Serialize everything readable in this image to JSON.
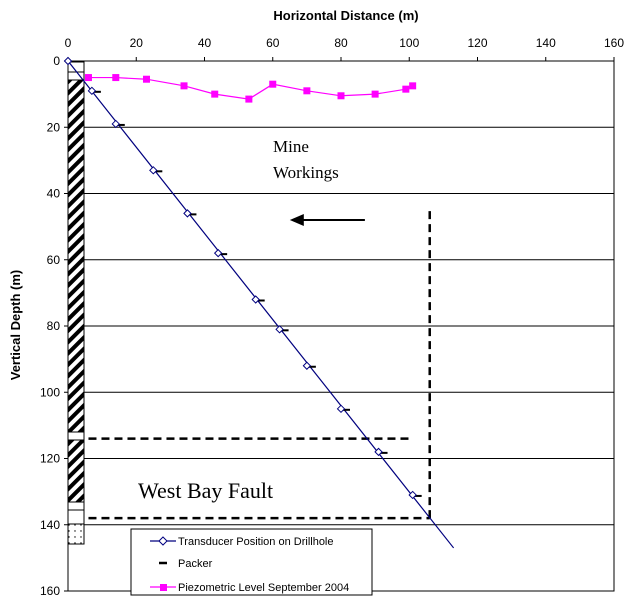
{
  "chart_data": {
    "type": "scatter",
    "xlabel": "Horizontal Distance (m)",
    "ylabel": "Vertical Depth (m)",
    "xlim": [
      0,
      160
    ],
    "ylim": [
      0,
      160
    ],
    "y_inverted": true,
    "x_axis_position": "top",
    "x_ticks": [
      "0",
      "20",
      "40",
      "60",
      "80",
      "100",
      "120",
      "140",
      "160"
    ],
    "y_ticks": [
      "0",
      "20",
      "40",
      "60",
      "80",
      "100",
      "120",
      "140",
      "160"
    ],
    "horizontal_gridlines": true,
    "series": [
      {
        "name": "Transducer Position on Drillhole",
        "color": "#00007f",
        "marker": "diamond-open",
        "line_x": [
          0,
          113
        ],
        "line_y": [
          0,
          147
        ],
        "points": [
          {
            "x": 7,
            "y": 9
          },
          {
            "x": 14,
            "y": 19
          },
          {
            "x": 25,
            "y": 33
          },
          {
            "x": 35,
            "y": 46
          },
          {
            "x": 44,
            "y": 58
          },
          {
            "x": 55,
            "y": 72
          },
          {
            "x": 62,
            "y": 81
          },
          {
            "x": 70,
            "y": 92
          },
          {
            "x": 80,
            "y": 105
          },
          {
            "x": 91,
            "y": 118
          },
          {
            "x": 101,
            "y": 131
          }
        ]
      },
      {
        "name": "Packer",
        "color": "#000000",
        "marker": "dash"
      },
      {
        "name": "Piezometric Level September 2004",
        "color": "#ff00ff",
        "marker": "square",
        "x": [
          6,
          14,
          23,
          34,
          43,
          53,
          60,
          70,
          80,
          90,
          99,
          101
        ],
        "y": [
          5,
          5,
          5.5,
          7.5,
          10,
          11.5,
          7,
          9,
          10.5,
          10,
          8.5,
          7.5
        ]
      }
    ],
    "annotations": [
      {
        "text_lines": [
          "Mine",
          "Workings"
        ],
        "x": 63,
        "y": 26
      },
      {
        "text": "West Bay Fault",
        "x": 23,
        "y": 133
      },
      {
        "arrow": "left",
        "x_from": 87,
        "x_to": 65,
        "y": 48
      }
    ],
    "dashed_lines": [
      {
        "x": [
          6,
          101
        ],
        "y": [
          114,
          114
        ]
      },
      {
        "x": [
          6,
          106
        ],
        "y": [
          138,
          138
        ]
      },
      {
        "x": [
          106,
          106
        ],
        "y": [
          138,
          44
        ]
      }
    ],
    "legend": {
      "placement": "bottom-center"
    }
  },
  "colors": {
    "line": "#00007f",
    "piezometric": "#ff00ff",
    "grid": "#000000"
  }
}
